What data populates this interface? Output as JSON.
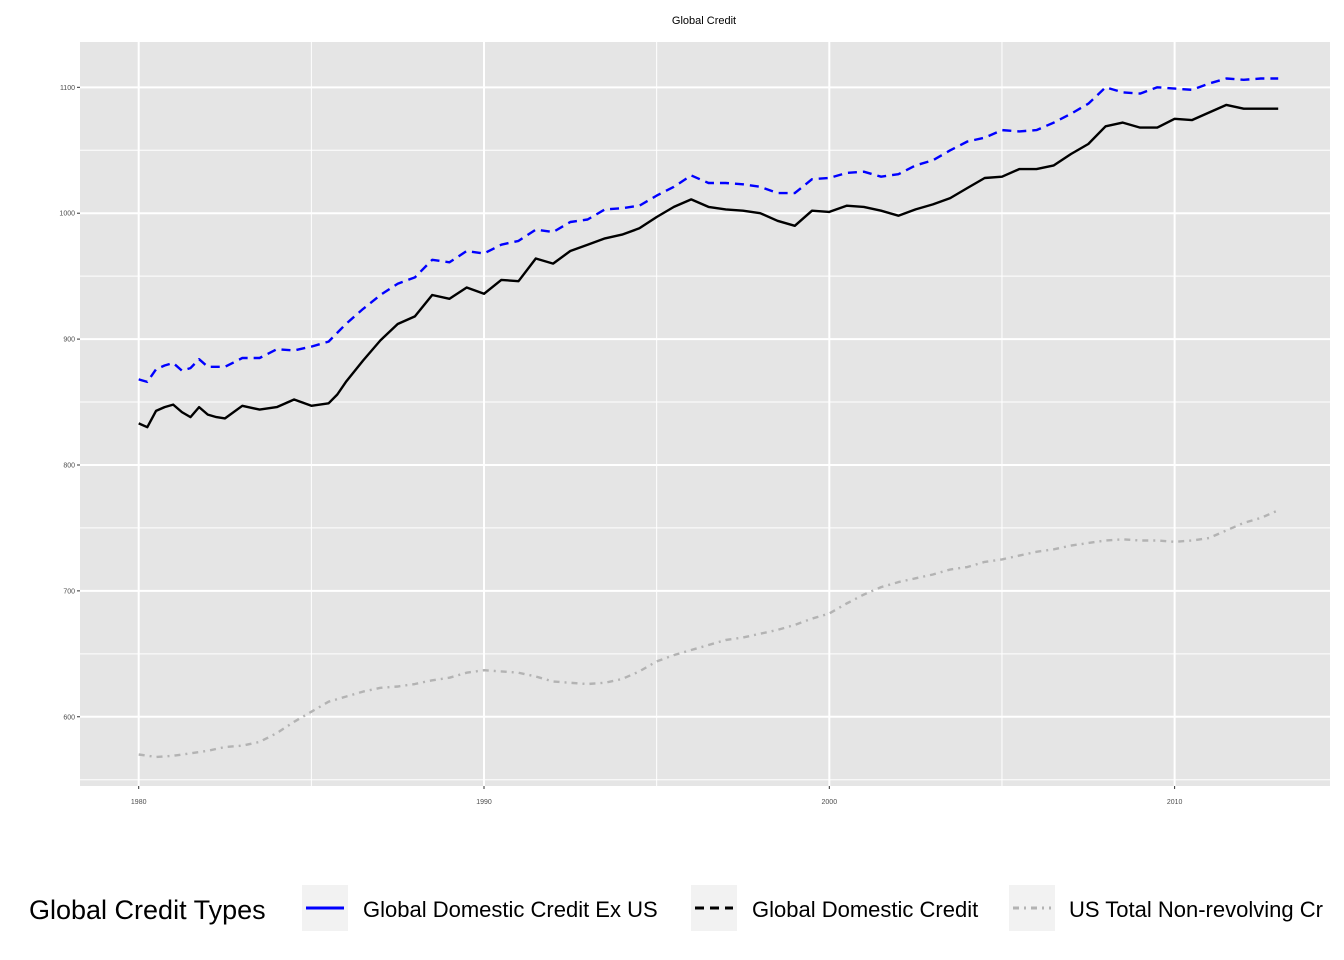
{
  "chart_data": {
    "type": "line",
    "title": "Global Credit",
    "xlabel": "",
    "ylabel": "",
    "xlim": [
      1978.3,
      2014.5
    ],
    "ylim": [
      545,
      1136
    ],
    "x_ticks": [
      1980,
      1990,
      2000,
      2010
    ],
    "y_ticks": [
      600,
      700,
      800,
      900,
      1000,
      1100
    ],
    "grid": true,
    "legend": {
      "title": "Global Credit Types",
      "position": "bottom"
    },
    "series": [
      {
        "name": "Global Domestic Credit Ex US",
        "color": "#0000ff",
        "linestyle": "dashed",
        "x": [
          1980.0,
          1980.25,
          1980.5,
          1980.75,
          1981.0,
          1981.25,
          1981.5,
          1981.75,
          1982.0,
          1982.5,
          1983.0,
          1983.5,
          1984.0,
          1984.5,
          1985.0,
          1985.5,
          1986.0,
          1986.5,
          1987.0,
          1987.5,
          1988.0,
          1988.5,
          1989.0,
          1989.5,
          1990.0,
          1990.5,
          1991.0,
          1991.5,
          1992.0,
          1992.5,
          1993.0,
          1993.5,
          1994.0,
          1994.5,
          1995.0,
          1995.5,
          1996.0,
          1996.5,
          1997.0,
          1997.5,
          1998.0,
          1998.5,
          1999.0,
          1999.5,
          2000.0,
          2000.5,
          2001.0,
          2001.5,
          2002.0,
          2002.5,
          2003.0,
          2003.5,
          2004.0,
          2004.5,
          2005.0,
          2005.5,
          2006.0,
          2006.5,
          2007.0,
          2007.5,
          2008.0,
          2008.5,
          2009.0,
          2009.5,
          2010.0,
          2010.5,
          2011.0,
          2011.5,
          2012.0,
          2012.5,
          2013.0
        ],
        "values": [
          868,
          866,
          876,
          879,
          881,
          875,
          877,
          884,
          878,
          878,
          885,
          885,
          892,
          891,
          894,
          898,
          912,
          924,
          935,
          944,
          949,
          963,
          961,
          970,
          968,
          975,
          978,
          987,
          985,
          993,
          995,
          1003,
          1004,
          1006,
          1014,
          1021,
          1030,
          1024,
          1024,
          1023,
          1021,
          1016,
          1016,
          1027,
          1028,
          1032,
          1033,
          1029,
          1031,
          1038,
          1042,
          1050,
          1057,
          1060,
          1066,
          1065,
          1066,
          1072,
          1079,
          1087,
          1100,
          1096,
          1095,
          1100,
          1099,
          1098,
          1103,
          1107,
          1106,
          1107,
          1107
        ]
      },
      {
        "name": "Global Domestic Credit",
        "color": "#000000",
        "linestyle": "solid",
        "x": [
          1980.0,
          1980.25,
          1980.5,
          1980.75,
          1981.0,
          1981.25,
          1981.5,
          1981.75,
          1982.0,
          1982.25,
          1982.5,
          1983.0,
          1983.5,
          1984.0,
          1984.5,
          1985.0,
          1985.5,
          1985.75,
          1986.0,
          1986.5,
          1987.0,
          1987.5,
          1988.0,
          1988.5,
          1989.0,
          1989.5,
          1990.0,
          1990.5,
          1991.0,
          1991.5,
          1992.0,
          1992.5,
          1993.0,
          1993.5,
          1994.0,
          1994.5,
          1995.0,
          1995.5,
          1996.0,
          1996.5,
          1997.0,
          1997.5,
          1998.0,
          1998.5,
          1999.0,
          1999.5,
          2000.0,
          2000.5,
          2001.0,
          2001.5,
          2002.0,
          2002.5,
          2003.0,
          2003.5,
          2004.0,
          2004.5,
          2005.0,
          2005.5,
          2006.0,
          2006.5,
          2007.0,
          2007.5,
          2008.0,
          2008.5,
          2009.0,
          2009.5,
          2010.0,
          2010.5,
          2011.0,
          2011.5,
          2012.0,
          2012.5,
          2013.0
        ],
        "values": [
          833,
          830,
          843,
          846,
          848,
          842,
          838,
          846,
          840,
          838,
          837,
          847,
          844,
          846,
          852,
          847,
          849,
          856,
          866,
          883,
          899,
          912,
          918,
          935,
          932,
          941,
          936,
          947,
          946,
          964,
          960,
          970,
          975,
          980,
          983,
          988,
          997,
          1005,
          1011,
          1005,
          1003,
          1002,
          1000,
          994,
          990,
          1002,
          1001,
          1006,
          1005,
          1002,
          998,
          1003,
          1007,
          1012,
          1020,
          1028,
          1029,
          1035,
          1035,
          1038,
          1047,
          1055,
          1069,
          1072,
          1068,
          1068,
          1075,
          1074,
          1080,
          1086,
          1083,
          1083,
          1083
        ]
      },
      {
        "name": "US Total Non-revolving Cr",
        "color": "#b3b3b3",
        "linestyle": "dotdash",
        "x": [
          1980.0,
          1980.5,
          1981.0,
          1981.5,
          1982.0,
          1982.5,
          1983.0,
          1983.5,
          1984.0,
          1984.5,
          1985.0,
          1985.5,
          1986.0,
          1986.5,
          1987.0,
          1987.5,
          1988.0,
          1988.5,
          1989.0,
          1989.5,
          1990.0,
          1990.5,
          1991.0,
          1991.5,
          1992.0,
          1992.5,
          1993.0,
          1993.5,
          1994.0,
          1994.5,
          1995.0,
          1995.5,
          1996.0,
          1996.5,
          1997.0,
          1997.5,
          1998.0,
          1998.5,
          1999.0,
          1999.5,
          2000.0,
          2000.5,
          2001.0,
          2001.5,
          2002.0,
          2002.5,
          2003.0,
          2003.5,
          2004.0,
          2004.5,
          2005.0,
          2005.5,
          2006.0,
          2006.5,
          2007.0,
          2007.5,
          2008.0,
          2008.5,
          2009.0,
          2009.5,
          2010.0,
          2010.5,
          2011.0,
          2011.5,
          2012.0,
          2012.5,
          2013.0
        ],
        "values": [
          570,
          568,
          569,
          571,
          573,
          576,
          577,
          580,
          587,
          596,
          604,
          612,
          616,
          620,
          623,
          624,
          626,
          629,
          631,
          635,
          637,
          636,
          635,
          632,
          628,
          627,
          626,
          627,
          630,
          636,
          644,
          649,
          653,
          657,
          661,
          663,
          666,
          669,
          673,
          678,
          682,
          690,
          697,
          703,
          707,
          710,
          713,
          717,
          719,
          723,
          725,
          728,
          731,
          733,
          736,
          738,
          740,
          741,
          740,
          740,
          739,
          740,
          742,
          748,
          754,
          758,
          764
        ]
      }
    ]
  }
}
